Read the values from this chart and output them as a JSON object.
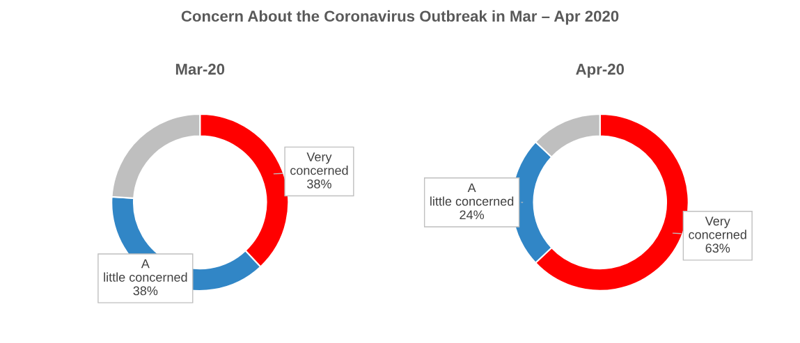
{
  "chart_data": [
    {
      "type": "donut",
      "title": "Mar-20",
      "annotations": [
        "Concern About the Coronavirus Outbreak in Mar – Apr 2020"
      ],
      "categories": [
        "Very concerned",
        "A little concerned",
        null
      ],
      "values": [
        38,
        38,
        24
      ],
      "value_labels": [
        "38%",
        "38%",
        null
      ],
      "colors": [
        "#ff0000",
        "#3186c6",
        "#bfbfbf"
      ]
    },
    {
      "type": "donut",
      "title": "Apr-20",
      "categories": [
        "Very concerned",
        "A little concerned",
        null
      ],
      "values": [
        63,
        24,
        13
      ],
      "value_labels": [
        "63%",
        "24%",
        null
      ],
      "colors": [
        "#ff0000",
        "#3186c6",
        "#bfbfbf"
      ]
    }
  ]
}
